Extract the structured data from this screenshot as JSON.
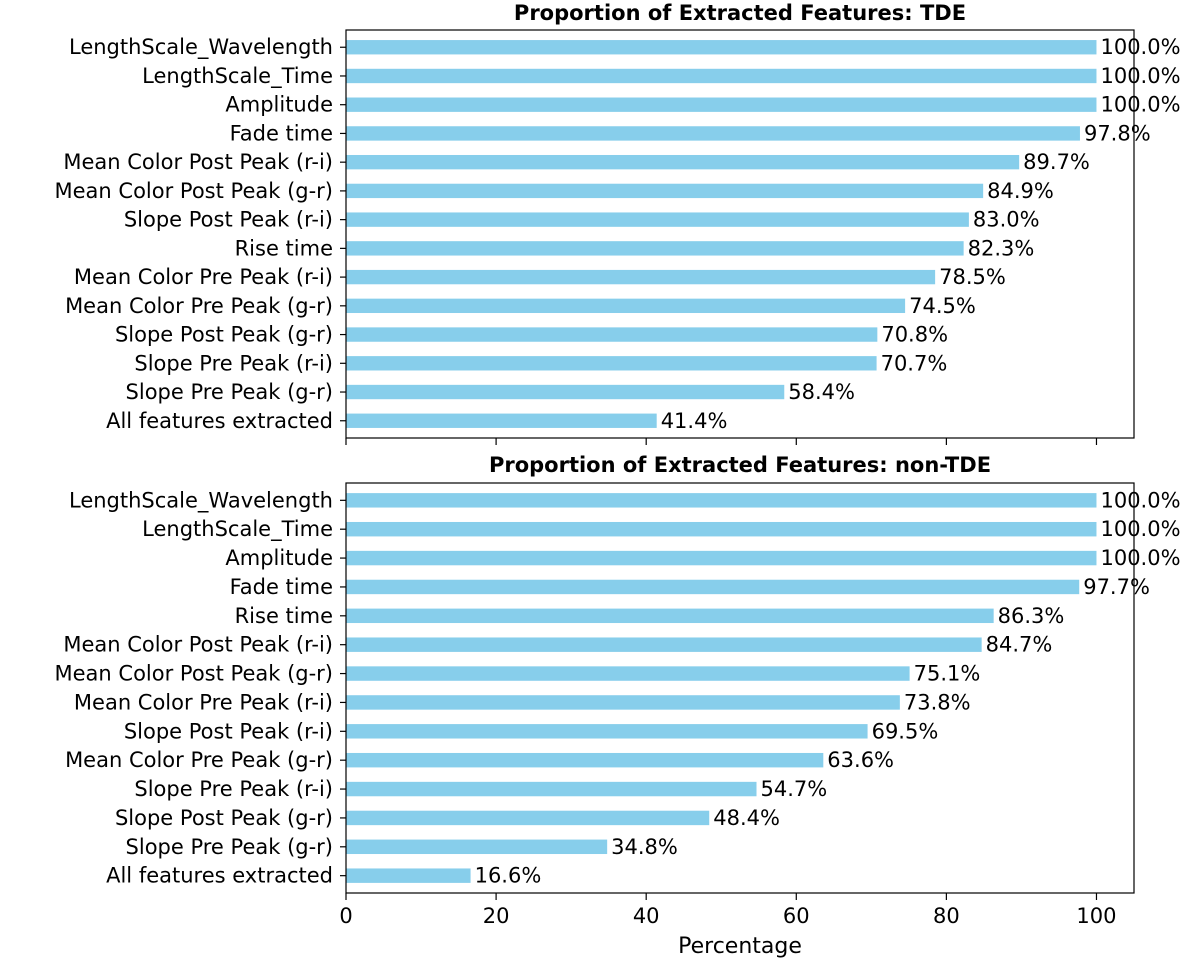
{
  "chart_data": [
    {
      "type": "bar",
      "orientation": "horizontal",
      "title": "Proportion of Extracted Features: TDE",
      "categories": [
        "LengthScale_Wavelength",
        "LengthScale_Time",
        "Amplitude",
        "Fade time",
        "Mean Color Post Peak (r-i)",
        "Mean Color Post Peak (g-r)",
        "Slope Post Peak (r-i)",
        "Rise time",
        "Mean Color Pre Peak (r-i)",
        "Mean Color Pre Peak (g-r)",
        "Slope Post Peak (g-r)",
        "Slope Pre Peak (r-i)",
        "Slope Pre Peak (g-r)",
        "All features extracted"
      ],
      "values": [
        100.0,
        100.0,
        100.0,
        97.8,
        89.7,
        84.9,
        83.0,
        82.3,
        78.5,
        74.5,
        70.8,
        70.7,
        58.4,
        41.4
      ],
      "data_labels": [
        "100.0%",
        "100.0%",
        "100.0%",
        "97.8%",
        "89.7%",
        "84.9%",
        "83.0%",
        "82.3%",
        "78.5%",
        "74.5%",
        "70.8%",
        "70.7%",
        "58.4%",
        "41.4%"
      ],
      "xlim": [
        0,
        105
      ],
      "xticks": [
        0,
        20,
        40,
        60,
        80,
        100
      ],
      "show_tick_labels": false,
      "xlabel": "",
      "ylabel": "",
      "grid": false,
      "color": "#87ceeb"
    },
    {
      "type": "bar",
      "orientation": "horizontal",
      "title": "Proportion of Extracted Features: non-TDE",
      "categories": [
        "LengthScale_Wavelength",
        "LengthScale_Time",
        "Amplitude",
        "Fade time",
        "Rise time",
        "Mean Color Post Peak (r-i)",
        "Mean Color Post Peak (g-r)",
        "Mean Color Pre Peak (r-i)",
        "Slope Post Peak (r-i)",
        "Mean Color Pre Peak (g-r)",
        "Slope Pre Peak (r-i)",
        "Slope Post Peak (g-r)",
        "Slope Pre Peak (g-r)",
        "All features extracted"
      ],
      "values": [
        100.0,
        100.0,
        100.0,
        97.7,
        86.3,
        84.7,
        75.1,
        73.8,
        69.5,
        63.6,
        54.7,
        48.4,
        34.8,
        16.6
      ],
      "data_labels": [
        "100.0%",
        "100.0%",
        "100.0%",
        "97.7%",
        "86.3%",
        "84.7%",
        "75.1%",
        "73.8%",
        "69.5%",
        "63.6%",
        "54.7%",
        "48.4%",
        "34.8%",
        "16.6%"
      ],
      "xlim": [
        0,
        105
      ],
      "xticks": [
        0,
        20,
        40,
        60,
        80,
        100
      ],
      "xtick_labels": [
        "0",
        "20",
        "40",
        "60",
        "80",
        "100"
      ],
      "show_tick_labels": true,
      "xlabel": "Percentage",
      "ylabel": "",
      "grid": false,
      "color": "#87ceeb"
    }
  ]
}
